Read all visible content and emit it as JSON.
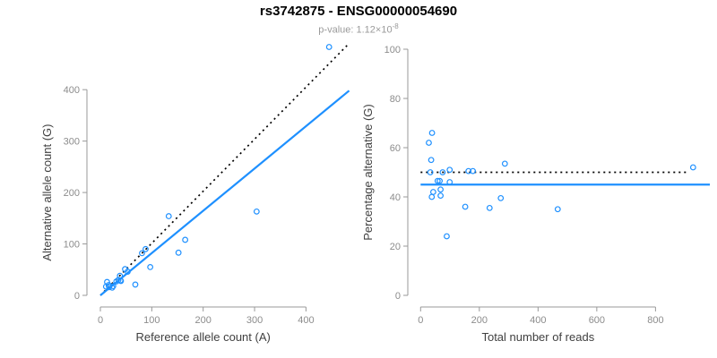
{
  "header": {
    "title": "rs3742875 - ENSG00000054690",
    "subtitle_prefix": "p-value: 1.12×10",
    "subtitle_exponent": "-8"
  },
  "colors": {
    "point_blue": "#1E90FF",
    "fit_line_blue": "#1E90FF",
    "identity_line_black": "#000000",
    "axis_gray": "#999999",
    "tick_label_gray": "#8c8c8c",
    "axis_title_gray": "#404040",
    "title_black": "#000000",
    "subtitle_gray": "#9a9a9a"
  },
  "chart_data": [
    {
      "type": "scatter",
      "name": "allele-counts-scatter",
      "xlabel": "Reference allele count (A)",
      "ylabel": "Alternative allele count (G)",
      "xlim": [
        0,
        490
      ],
      "ylim": [
        0,
        495
      ],
      "xticks": [
        0,
        100,
        200,
        300,
        400
      ],
      "yticks": [
        0,
        100,
        200,
        300,
        400
      ],
      "grid": false,
      "legend": "none",
      "points": [
        [
          13,
          26
        ],
        [
          11,
          17
        ],
        [
          16,
          20
        ],
        [
          17,
          16
        ],
        [
          38,
          38
        ],
        [
          48,
          51
        ],
        [
          31,
          27
        ],
        [
          35,
          30
        ],
        [
          53,
          46
        ],
        [
          25,
          18
        ],
        [
          39,
          29
        ],
        [
          40,
          28
        ],
        [
          23,
          15
        ],
        [
          68,
          21
        ],
        [
          97,
          55
        ],
        [
          81,
          82
        ],
        [
          88,
          90
        ],
        [
          152,
          83
        ],
        [
          165,
          108
        ],
        [
          133,
          154
        ],
        [
          304,
          163
        ],
        [
          445,
          483
        ]
      ],
      "lines": [
        {
          "name": "identity-line",
          "style": "dotted",
          "color": "identity_line_black",
          "x1": 0,
          "y1": 0,
          "x2": 484,
          "y2": 490
        },
        {
          "name": "fit-line",
          "style": "solid",
          "color": "fit_line_blue",
          "x1": 0,
          "y1": 0,
          "x2": 484,
          "y2": 398
        }
      ]
    },
    {
      "type": "scatter",
      "name": "percentage-alternative-scatter",
      "xlabel": "Total number of reads",
      "ylabel": "Percentage alternative (G)",
      "xlim": [
        0,
        985
      ],
      "ylim": [
        0,
        100
      ],
      "xticks": [
        0,
        200,
        400,
        600,
        800
      ],
      "yticks": [
        0,
        20,
        40,
        60,
        80,
        100
      ],
      "grid": false,
      "legend": "none",
      "points": [
        [
          39,
          66
        ],
        [
          28,
          62
        ],
        [
          36,
          55
        ],
        [
          33,
          50
        ],
        [
          75,
          50
        ],
        [
          99,
          51
        ],
        [
          58,
          46.5
        ],
        [
          65,
          46.5
        ],
        [
          99,
          46
        ],
        [
          43,
          42
        ],
        [
          68,
          43
        ],
        [
          68,
          40.5
        ],
        [
          38,
          40
        ],
        [
          89,
          24
        ],
        [
          152,
          36
        ],
        [
          163,
          50.5
        ],
        [
          178,
          50.5
        ],
        [
          235,
          35.5
        ],
        [
          273,
          39.5
        ],
        [
          287,
          53.5
        ],
        [
          467,
          35
        ],
        [
          928,
          52
        ]
      ],
      "lines": [
        {
          "name": "identity-line",
          "style": "dotted",
          "color": "identity_line_black",
          "x1": 0,
          "y1": 50,
          "x2": 912,
          "y2": 50
        },
        {
          "name": "fit-line",
          "style": "solid",
          "color": "fit_line_blue",
          "x1": 0,
          "y1": 45,
          "x2": 985,
          "y2": 45
        }
      ]
    }
  ]
}
